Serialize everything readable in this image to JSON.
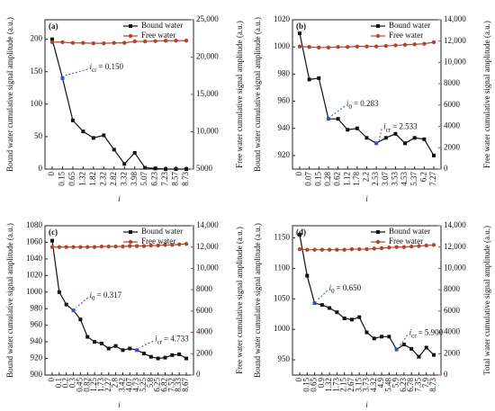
{
  "chart_data": [
    {
      "type": "line",
      "label": "(a)",
      "xlabel": "i",
      "ylabel": "Bound water cumulative signal amplitude (a.u.)",
      "y2label": "Free water cumulative signal amplitude (a.u.)",
      "categories": [
        "0",
        "0.15",
        "0.65",
        "1.32",
        "1.82",
        "2.32",
        "2.82",
        "3.32",
        "3.98",
        "5.07",
        "6.23",
        "7.23",
        "8.57",
        "8.73"
      ],
      "ylim": [
        0,
        230
      ],
      "yticks": [
        0,
        50,
        100,
        150,
        200
      ],
      "y2lim": [
        5000,
        25000
      ],
      "y2ticks": [
        {
          "value": 5000,
          "label": "5000"
        },
        {
          "value": 10000,
          "label": "10,000"
        },
        {
          "value": 15000,
          "label": "15,000"
        },
        {
          "value": 20000,
          "label": "20,000"
        },
        {
          "value": 25000,
          "label": "25,000"
        }
      ],
      "legend": "upper right",
      "series": [
        {
          "name": "Bound water",
          "color": "#111111",
          "values": [
            200,
            140,
            75,
            58,
            48,
            52,
            30,
            8,
            25,
            2,
            1,
            0,
            0,
            0
          ]
        },
        {
          "name": "Free water",
          "color": "#b5442c",
          "axis": "y2",
          "values": [
            22000,
            22000,
            21900,
            21900,
            21850,
            21850,
            21900,
            21900,
            22100,
            22100,
            22150,
            22200,
            22200,
            22200
          ]
        }
      ],
      "annotations": [
        {
          "symbol": "i",
          "subscript": "cr",
          "text": "= 0.150"
        }
      ]
    },
    {
      "type": "line",
      "label": "(b)",
      "xlabel": "i",
      "ylabel": "Bound water cumulative signal amplitude (a.u.)",
      "y2label": "Free water cumulative signal amplitude (a.u.)",
      "categories": [
        "0",
        "0.07",
        "0.15",
        "0.28",
        "0.62",
        "1.12",
        "1.78",
        "2.2",
        "2.53",
        "3.07",
        "3.53",
        "4.53",
        "5.37",
        "6.2",
        "7.27"
      ],
      "ylim": [
        910,
        1020
      ],
      "yticks": [
        920,
        940,
        960,
        980,
        1000,
        1020
      ],
      "y2lim": [
        0,
        14000
      ],
      "y2ticks": [
        0,
        {
          "value": 2000,
          "label": "2000"
        },
        {
          "value": 4000,
          "label": "4000"
        },
        {
          "value": 6000,
          "label": "6000"
        },
        {
          "value": 8000,
          "label": "8000"
        },
        {
          "value": 10000,
          "label": "10,000"
        },
        {
          "value": 12000,
          "label": "12,000"
        },
        {
          "value": 14000,
          "label": "14,000"
        }
      ],
      "legend": "upper right",
      "series": [
        {
          "name": "Bound water",
          "color": "#111111",
          "values": [
            1010,
            976,
            977,
            947,
            947,
            939,
            940,
            933,
            929,
            933,
            936,
            929,
            933,
            932,
            920
          ]
        },
        {
          "name": "Free water",
          "color": "#b5442c",
          "axis": "y2",
          "values": [
            11500,
            11450,
            11400,
            11400,
            11450,
            11450,
            11500,
            11500,
            11500,
            11550,
            11600,
            11650,
            11700,
            11750,
            11900
          ]
        }
      ],
      "annotations": [
        {
          "symbol": "i",
          "subscript": "0",
          "text": "= 0.283"
        },
        {
          "symbol": "i",
          "subscript": "cr",
          "text": "= 2.533"
        }
      ]
    },
    {
      "type": "line",
      "label": "(c)",
      "xlabel": "i",
      "ylabel": "Bound water cumulative signal amplitude (a.u.)",
      "y2label": "Free water cumulative signal amplitude (a.u.)",
      "categories": [
        "0",
        "0.1",
        "0.2",
        "0.3",
        "0.45",
        "0.82",
        "1.25",
        "1.73",
        "2.27",
        "2.8",
        "3.42",
        "4.07",
        "4.73",
        "5.25",
        "5.8",
        "6.25",
        "6.82",
        "7.52",
        "8.33",
        "8.67"
      ],
      "ylim": [
        900,
        1080
      ],
      "yticks": [
        900,
        920,
        940,
        960,
        980,
        1000,
        1020,
        1040,
        1060,
        1080
      ],
      "y2lim": [
        0,
        14000
      ],
      "y2ticks": [
        0,
        {
          "value": 2000,
          "label": "2000"
        },
        {
          "value": 4000,
          "label": "4000"
        },
        {
          "value": 6000,
          "label": "6000"
        },
        {
          "value": 8000,
          "label": "8000"
        },
        {
          "value": 10000,
          "label": "10,000"
        },
        {
          "value": 12000,
          "label": "12,000"
        },
        {
          "value": 14000,
          "label": "14,000"
        }
      ],
      "legend": "upper right",
      "series": [
        {
          "name": "Bound water",
          "color": "#111111",
          "values": [
            1062,
            1000,
            985,
            978,
            967,
            946,
            940,
            938,
            932,
            935,
            930,
            932,
            930,
            926,
            922,
            920,
            921,
            924,
            925,
            920
          ]
        },
        {
          "name": "Free water",
          "color": "#b5442c",
          "axis": "y2",
          "values": [
            12000,
            12000,
            12000,
            12000,
            12000,
            12000,
            12000,
            12050,
            12050,
            12050,
            12050,
            12100,
            12100,
            12100,
            12150,
            12150,
            12200,
            12200,
            12250,
            12300
          ]
        }
      ],
      "annotations": [
        {
          "symbol": "i",
          "subscript": "0",
          "text": "= 0.317"
        },
        {
          "symbol": "i",
          "subscript": "cr",
          "text": "= 4.733"
        }
      ]
    },
    {
      "type": "line",
      "label": "(d)",
      "xlabel": "i",
      "ylabel": "Bound water cumulative signal amplitude (a.u.)",
      "y2label": "Total water cumulative signal amplitude (a.u.)",
      "categories": [
        "0",
        "0.15",
        "0.65",
        "0.9",
        "1.32",
        "1.73",
        "2.15",
        "2.67",
        "3.15",
        "3.73",
        "4.32",
        "4.9",
        "5.48",
        "5.9",
        "6.23",
        "6.78",
        "7.35",
        "7.9",
        "8.73"
      ],
      "ylim": [
        925,
        1170
      ],
      "yticks": [
        950,
        1000,
        1050,
        1100,
        1150
      ],
      "y2lim": [
        0,
        14000
      ],
      "y2ticks": [
        0,
        {
          "value": 2000,
          "label": "2000"
        },
        {
          "value": 4000,
          "label": "4000"
        },
        {
          "value": 6000,
          "label": "6000"
        },
        {
          "value": 8000,
          "label": "8000"
        },
        {
          "value": 10000,
          "label": "10,000"
        },
        {
          "value": 12000,
          "label": "12,000"
        },
        {
          "value": 14000,
          "label": "14,000"
        }
      ],
      "legend": "upper right",
      "series": [
        {
          "name": "Bound water",
          "color": "#111111",
          "values": [
            1155,
            1088,
            1043,
            1040,
            1035,
            1028,
            1018,
            1016,
            1020,
            995,
            985,
            988,
            988,
            967,
            975,
            968,
            955,
            970,
            958
          ]
        },
        {
          "name": "Free water",
          "color": "#b5442c",
          "axis": "y2",
          "values": [
            11800,
            11750,
            11750,
            11750,
            11750,
            11750,
            11750,
            11800,
            11800,
            11800,
            11850,
            11900,
            11950,
            12000,
            12000,
            12050,
            12100,
            12150,
            12200
          ]
        }
      ],
      "annotations": [
        {
          "symbol": "i",
          "subscript": "0",
          "text": "= 0.650"
        },
        {
          "symbol": "i",
          "subscript": "cr",
          "text": "= 5.900"
        }
      ]
    }
  ]
}
